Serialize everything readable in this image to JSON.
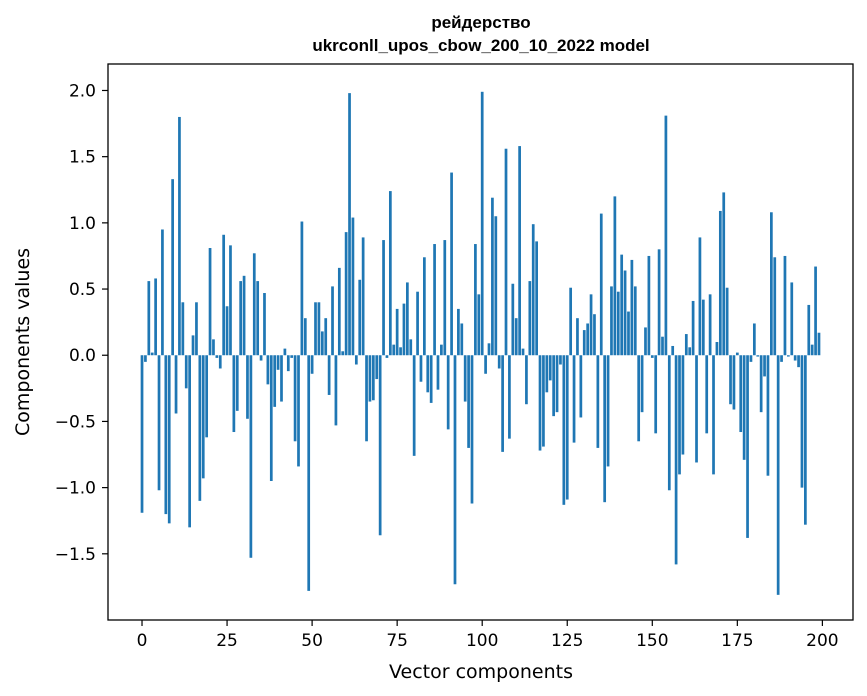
{
  "chart_data": {
    "type": "bar",
    "title": "рейдерство",
    "subtitle": "ukrconll_upos_cbow_200_10_2022 model",
    "xlabel": "Vector components",
    "ylabel": "Components values",
    "xlim": [
      -10,
      209
    ],
    "ylim": [
      -2.0,
      2.2
    ],
    "xticks": [
      0,
      25,
      50,
      75,
      100,
      125,
      150,
      175,
      200
    ],
    "yticks": [
      -1.5,
      -1.0,
      -0.5,
      0.0,
      0.5,
      1.0,
      1.5,
      2.0
    ],
    "xtick_labels": [
      "0",
      "25",
      "50",
      "75",
      "100",
      "125",
      "150",
      "175",
      "200"
    ],
    "ytick_labels": [
      "−1.5",
      "−1.0",
      "−0.5",
      "0.0",
      "0.5",
      "1.0",
      "1.5",
      "2.0"
    ],
    "bar_color": "#1f77b4",
    "values": [
      -1.19,
      -0.05,
      0.56,
      0.02,
      0.58,
      -1.02,
      0.95,
      -1.2,
      -1.27,
      1.33,
      -0.44,
      1.8,
      0.4,
      -0.25,
      -1.3,
      0.15,
      0.4,
      -1.1,
      -0.93,
      -0.62,
      0.81,
      0.12,
      -0.02,
      -0.1,
      0.91,
      0.37,
      0.83,
      -0.58,
      -0.42,
      0.56,
      0.6,
      -0.48,
      -1.53,
      0.77,
      0.56,
      -0.04,
      0.47,
      -0.22,
      -0.95,
      -0.39,
      -0.11,
      -0.35,
      0.05,
      -0.12,
      -0.02,
      -0.65,
      -0.84,
      1.01,
      0.28,
      -1.78,
      -0.14,
      0.4,
      0.4,
      0.18,
      0.28,
      -0.3,
      0.52,
      -0.53,
      0.66,
      0.03,
      0.93,
      1.98,
      1.04,
      -0.07,
      0.57,
      0.89,
      -0.65,
      -0.35,
      -0.34,
      -0.18,
      -1.36,
      0.87,
      -0.02,
      1.24,
      0.08,
      0.35,
      0.06,
      0.39,
      0.55,
      0.12,
      -0.76,
      0.48,
      -0.2,
      0.74,
      -0.28,
      -0.36,
      0.84,
      -0.26,
      0.08,
      0.87,
      -0.56,
      1.38,
      -1.73,
      0.35,
      0.24,
      -0.35,
      -0.7,
      -1.12,
      0.84,
      0.46,
      1.99,
      -0.14,
      0.09,
      1.19,
      1.05,
      -0.1,
      -0.73,
      1.56,
      -0.63,
      0.54,
      0.28,
      1.58,
      0.05,
      -0.37,
      0.56,
      0.99,
      0.86,
      -0.72,
      -0.69,
      -0.28,
      -0.19,
      -0.46,
      -0.43,
      -0.07,
      -1.13,
      -1.09,
      0.51,
      -0.66,
      0.28,
      -0.47,
      0.19,
      0.24,
      0.46,
      0.31,
      -0.7,
      1.07,
      -1.11,
      -0.84,
      0.52,
      1.2,
      0.48,
      0.76,
      0.64,
      0.33,
      0.72,
      0.52,
      -0.65,
      -0.43,
      0.21,
      0.75,
      -0.02,
      -0.59,
      0.8,
      0.14,
      1.81,
      -1.02,
      0.07,
      -1.58,
      -0.9,
      -0.75,
      0.16,
      0.06,
      0.41,
      -0.81,
      0.89,
      0.42,
      -0.59,
      0.46,
      -0.9,
      0.1,
      1.09,
      1.23,
      0.51,
      -0.37,
      -0.41,
      0.02,
      -0.58,
      -0.79,
      -1.38,
      -0.05,
      0.24,
      -0.01,
      -0.43,
      -0.16,
      -0.91,
      1.08,
      0.74,
      -1.81,
      -0.05,
      0.75,
      -0.01,
      0.55,
      -0.04,
      -0.09,
      -1.0,
      -1.28,
      0.38,
      0.08,
      0.67,
      0.17
    ]
  }
}
